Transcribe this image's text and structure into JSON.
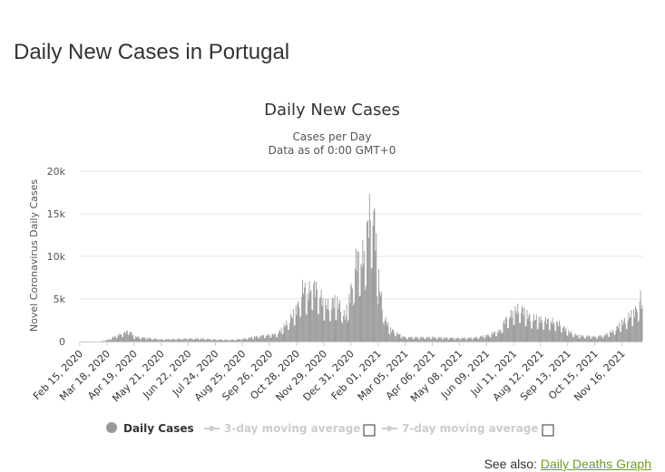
{
  "page": {
    "title": "Daily New Cases in Portugal",
    "see_also_prefix": "See also:",
    "see_also_link": "Daily Deaths Graph"
  },
  "chart_data": {
    "type": "bar",
    "title": "Daily New Cases",
    "subtitle_line1": "Cases per Day",
    "subtitle_line2": "Data as of 0:00 GMT+0",
    "ylabel": "Novel Coronavirus Daily Cases",
    "xlabel": "",
    "ylim": [
      0,
      20000
    ],
    "y_ticks": [
      0,
      5000,
      10000,
      15000,
      20000
    ],
    "y_tick_labels": [
      "0",
      "5k",
      "10k",
      "15k",
      "20k"
    ],
    "x_range": [
      "2020-02-15",
      "2021-12-10"
    ],
    "x_tick_labels": [
      "Feb 15, 2020",
      "Mar 18, 2020",
      "Apr 19, 2020",
      "May 21, 2020",
      "Jun 22, 2020",
      "Jul 24, 2020",
      "Aug 25, 2020",
      "Sep 26, 2020",
      "Oct 28, 2020",
      "Nov 29, 2020",
      "Dec 31, 2020",
      "Feb 01, 2021",
      "Mar 05, 2021",
      "Apr 06, 2021",
      "May 08, 2021",
      "Jun 09, 2021",
      "Jul 11, 2021",
      "Aug 12, 2021",
      "Sep 13, 2021",
      "Oct 15, 2021",
      "Nov 16, 2021"
    ],
    "grid": true,
    "bar_color": "#999999",
    "series": [
      {
        "name": "Daily Cases",
        "points": [
          [
            "2020-02-15",
            0
          ],
          [
            "2020-03-10",
            5
          ],
          [
            "2020-03-18",
            150
          ],
          [
            "2020-03-25",
            500
          ],
          [
            "2020-04-01",
            800
          ],
          [
            "2020-04-10",
            1100
          ],
          [
            "2020-04-12",
            1500
          ],
          [
            "2020-04-19",
            600
          ],
          [
            "2020-05-01",
            450
          ],
          [
            "2020-05-21",
            250
          ],
          [
            "2020-06-22",
            350
          ],
          [
            "2020-07-10",
            330
          ],
          [
            "2020-07-24",
            250
          ],
          [
            "2020-08-10",
            200
          ],
          [
            "2020-08-25",
            300
          ],
          [
            "2020-09-10",
            600
          ],
          [
            "2020-09-26",
            800
          ],
          [
            "2020-10-05",
            900
          ],
          [
            "2020-10-15",
            2000
          ],
          [
            "2020-10-28",
            3800
          ],
          [
            "2020-11-05",
            6500
          ],
          [
            "2020-11-10",
            5500
          ],
          [
            "2020-11-15",
            6800
          ],
          [
            "2020-11-20",
            6200
          ],
          [
            "2020-11-25",
            5500
          ],
          [
            "2020-11-29",
            4500
          ],
          [
            "2020-12-05",
            4200
          ],
          [
            "2020-12-10",
            4800
          ],
          [
            "2020-12-15",
            4500
          ],
          [
            "2020-12-20",
            4200
          ],
          [
            "2020-12-24",
            2800
          ],
          [
            "2020-12-31",
            6000
          ],
          [
            "2021-01-07",
            10000
          ],
          [
            "2021-01-12",
            9500
          ],
          [
            "2021-01-17",
            11000
          ],
          [
            "2021-01-21",
            14500
          ],
          [
            "2021-01-24",
            15500
          ],
          [
            "2021-01-26",
            16000
          ],
          [
            "2021-01-29",
            13000
          ],
          [
            "2021-02-01",
            8000
          ],
          [
            "2021-02-05",
            5000
          ],
          [
            "2021-02-10",
            2500
          ],
          [
            "2021-02-15",
            1500
          ],
          [
            "2021-02-25",
            900
          ],
          [
            "2021-03-05",
            500
          ],
          [
            "2021-04-06",
            500
          ],
          [
            "2021-05-08",
            400
          ],
          [
            "2021-05-25",
            450
          ],
          [
            "2021-06-09",
            700
          ],
          [
            "2021-06-25",
            1300
          ],
          [
            "2021-07-01",
            2500
          ],
          [
            "2021-07-11",
            3500
          ],
          [
            "2021-07-20",
            4000
          ],
          [
            "2021-07-25",
            3300
          ],
          [
            "2021-08-01",
            2800
          ],
          [
            "2021-08-12",
            2600
          ],
          [
            "2021-08-25",
            2400
          ],
          [
            "2021-09-05",
            2000
          ],
          [
            "2021-09-13",
            1200
          ],
          [
            "2021-09-25",
            700
          ],
          [
            "2021-10-15",
            600
          ],
          [
            "2021-10-25",
            700
          ],
          [
            "2021-11-05",
            1200
          ],
          [
            "2021-11-16",
            2200
          ],
          [
            "2021-11-25",
            3000
          ],
          [
            "2021-12-01",
            3500
          ],
          [
            "2021-12-05",
            4200
          ],
          [
            "2021-12-08",
            5200
          ],
          [
            "2021-12-10",
            4000
          ]
        ]
      }
    ],
    "legend": {
      "placement": "bottom",
      "items": [
        {
          "label": "Daily Cases",
          "active": true
        },
        {
          "label": "3-day moving average",
          "active": false
        },
        {
          "label": "7-day moving average",
          "active": false
        }
      ]
    }
  }
}
